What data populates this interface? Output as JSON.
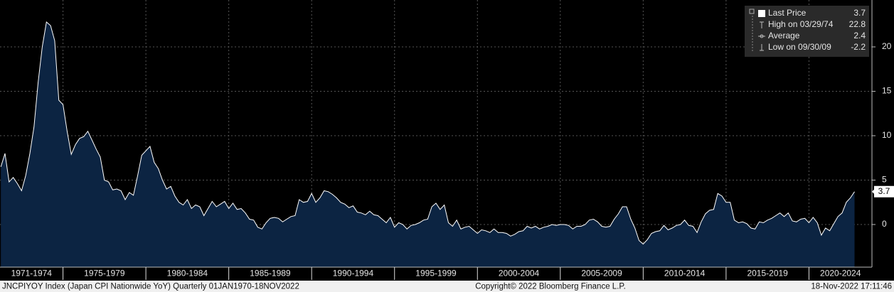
{
  "chart_data": {
    "type": "area",
    "x": [
      1971.25,
      1971.5,
      1971.75,
      1972,
      1972.25,
      1972.5,
      1972.75,
      1973,
      1973.25,
      1973.5,
      1973.75,
      1974,
      1974.25,
      1974.5,
      1974.75,
      1975,
      1975.25,
      1975.5,
      1975.75,
      1976,
      1976.25,
      1976.5,
      1976.75,
      1977,
      1977.25,
      1977.5,
      1977.75,
      1978,
      1978.25,
      1978.5,
      1978.75,
      1979,
      1979.25,
      1979.5,
      1979.75,
      1980,
      1980.25,
      1980.5,
      1980.75,
      1981,
      1981.25,
      1981.5,
      1981.75,
      1982,
      1982.25,
      1982.5,
      1982.75,
      1983,
      1983.25,
      1983.5,
      1983.75,
      1984,
      1984.25,
      1984.5,
      1984.75,
      1985,
      1985.25,
      1985.5,
      1985.75,
      1986,
      1986.25,
      1986.5,
      1986.75,
      1987,
      1987.25,
      1987.5,
      1987.75,
      1988,
      1988.25,
      1988.5,
      1988.75,
      1989,
      1989.25,
      1989.5,
      1989.75,
      1990,
      1990.25,
      1990.5,
      1990.75,
      1991,
      1991.25,
      1991.5,
      1991.75,
      1992,
      1992.25,
      1992.5,
      1992.75,
      1993,
      1993.25,
      1993.5,
      1993.75,
      1994,
      1994.25,
      1994.5,
      1994.75,
      1995,
      1995.25,
      1995.5,
      1995.75,
      1996,
      1996.25,
      1996.5,
      1996.75,
      1997,
      1997.25,
      1997.5,
      1997.75,
      1998,
      1998.25,
      1998.5,
      1998.75,
      1999,
      1999.25,
      1999.5,
      1999.75,
      2000,
      2000.25,
      2000.5,
      2000.75,
      2001,
      2001.25,
      2001.5,
      2001.75,
      2002,
      2002.25,
      2002.5,
      2002.75,
      2003,
      2003.25,
      2003.5,
      2003.75,
      2004,
      2004.25,
      2004.5,
      2004.75,
      2005,
      2005.25,
      2005.5,
      2005.75,
      2006,
      2006.25,
      2006.5,
      2006.75,
      2007,
      2007.25,
      2007.5,
      2007.75,
      2008,
      2008.25,
      2008.5,
      2008.75,
      2009,
      2009.25,
      2009.5,
      2009.75,
      2010,
      2010.25,
      2010.5,
      2010.75,
      2011,
      2011.25,
      2011.5,
      2011.75,
      2012,
      2012.25,
      2012.5,
      2012.75,
      2013,
      2013.25,
      2013.5,
      2013.75,
      2014,
      2014.25,
      2014.5,
      2014.75,
      2015,
      2015.25,
      2015.5,
      2015.75,
      2016,
      2016.25,
      2016.5,
      2016.75,
      2017,
      2017.25,
      2017.5,
      2017.75,
      2018,
      2018.25,
      2018.5,
      2018.75,
      2019,
      2019.25,
      2019.5,
      2019.75,
      2020,
      2020.25,
      2020.5,
      2020.75,
      2021,
      2021.25,
      2021.5,
      2021.75,
      2022,
      2022.25,
      2022.5,
      2022.75
    ],
    "series": [
      {
        "name": "Last Price",
        "color": "#ffffff",
        "fill": "#0c2442",
        "values": [
          6.5,
          8.0,
          4.8,
          5.3,
          4.6,
          3.8,
          5.5,
          8.0,
          11.0,
          16.0,
          20.0,
          22.8,
          22.4,
          20.7,
          14.0,
          13.5,
          10.5,
          7.9,
          9.0,
          9.7,
          9.9,
          10.5,
          9.5,
          8.5,
          7.6,
          5.0,
          4.8,
          3.9,
          4.0,
          3.8,
          2.8,
          3.6,
          3.3,
          5.5,
          7.8,
          8.3,
          8.8,
          7.0,
          6.3,
          5.0,
          4.0,
          4.3,
          3.2,
          2.5,
          2.2,
          2.8,
          1.8,
          2.2,
          2.0,
          1.0,
          1.8,
          2.6,
          2.0,
          2.3,
          2.6,
          1.8,
          2.4,
          1.7,
          1.8,
          1.3,
          0.6,
          0.5,
          -0.3,
          -0.5,
          0.2,
          0.7,
          0.8,
          0.7,
          0.3,
          0.6,
          0.9,
          1.0,
          2.8,
          2.5,
          2.6,
          3.5,
          2.5,
          3.0,
          3.8,
          3.7,
          3.4,
          3.0,
          2.5,
          2.3,
          1.9,
          2.1,
          1.4,
          1.3,
          1.1,
          1.5,
          1.1,
          1.0,
          0.6,
          0.2,
          0.8,
          -0.3,
          0.2,
          0.0,
          -0.5,
          -0.1,
          0.0,
          0.2,
          0.5,
          0.6,
          2.0,
          2.4,
          1.7,
          2.2,
          0.2,
          -0.2,
          0.5,
          -0.5,
          -0.3,
          -0.2,
          -0.6,
          -1.0,
          -0.6,
          -0.7,
          -0.9,
          -0.5,
          -0.9,
          -0.9,
          -1.0,
          -1.3,
          -1.1,
          -0.8,
          -0.7,
          -0.2,
          -0.4,
          -0.2,
          -0.5,
          -0.3,
          -0.2,
          0.0,
          -0.1,
          0.0,
          0.0,
          -0.1,
          -0.5,
          -0.2,
          -0.2,
          0.0,
          0.5,
          0.6,
          0.3,
          -0.2,
          -0.3,
          -0.2,
          0.6,
          1.2,
          2.0,
          2.0,
          0.6,
          -0.4,
          -1.8,
          -2.2,
          -1.7,
          -1.0,
          -0.8,
          -0.7,
          -0.1,
          -0.6,
          -0.4,
          -0.1,
          0.0,
          0.5,
          -0.1,
          -0.2,
          -0.9,
          0.3,
          1.2,
          1.6,
          1.7,
          3.5,
          3.2,
          2.5,
          2.5,
          0.5,
          0.2,
          0.3,
          0.1,
          -0.4,
          -0.5,
          0.3,
          0.2,
          0.5,
          0.7,
          1.0,
          1.3,
          0.9,
          1.3,
          0.4,
          0.3,
          0.6,
          0.7,
          0.2,
          0.8,
          0.2,
          -1.2,
          -0.4,
          -0.7,
          0.1,
          0.9,
          1.3,
          2.5,
          3.0,
          3.7
        ]
      }
    ],
    "xlim": [
      1971.2,
      2023.8
    ],
    "xticks": [
      1975,
      1980,
      1985,
      1990,
      1995,
      2000,
      2005,
      2010,
      2015,
      2020
    ],
    "x_period_labels": [
      {
        "value": 1973.1,
        "label": "1971-1974"
      },
      {
        "value": 1977.5,
        "label": "1975-1979"
      },
      {
        "value": 1982.5,
        "label": "1980-1984"
      },
      {
        "value": 1987.5,
        "label": "1985-1989"
      },
      {
        "value": 1992.5,
        "label": "1990-1994"
      },
      {
        "value": 1997.5,
        "label": "1995-1999"
      },
      {
        "value": 2002.5,
        "label": "2000-2004"
      },
      {
        "value": 2007.5,
        "label": "2005-2009"
      },
      {
        "value": 2012.5,
        "label": "2010-2014"
      },
      {
        "value": 2017.5,
        "label": "2015-2019"
      },
      {
        "value": 2021.9,
        "label": "2020-2024"
      }
    ],
    "ylim": [
      -4.8,
      25.28
    ],
    "yticks": [
      0,
      5,
      10,
      15,
      20
    ],
    "grid": true,
    "legend_position": "top-right",
    "legend": [
      {
        "label": "Last Price",
        "value": 3.7
      },
      {
        "label": "High on 03/29/74",
        "value": 22.8
      },
      {
        "label": "Average",
        "value": 2.4
      },
      {
        "label": "Low on 09/30/09",
        "value": -2.2
      }
    ],
    "footer": {
      "left": "JNCPIYOY Index (Japan CPI Nationwide YoY)  Quarterly 01JAN1970-18NOV2022",
      "center": "Copyright© 2022 Bloomberg Finance L.P.",
      "right": "18-Nov-2022 17:11:46"
    }
  }
}
